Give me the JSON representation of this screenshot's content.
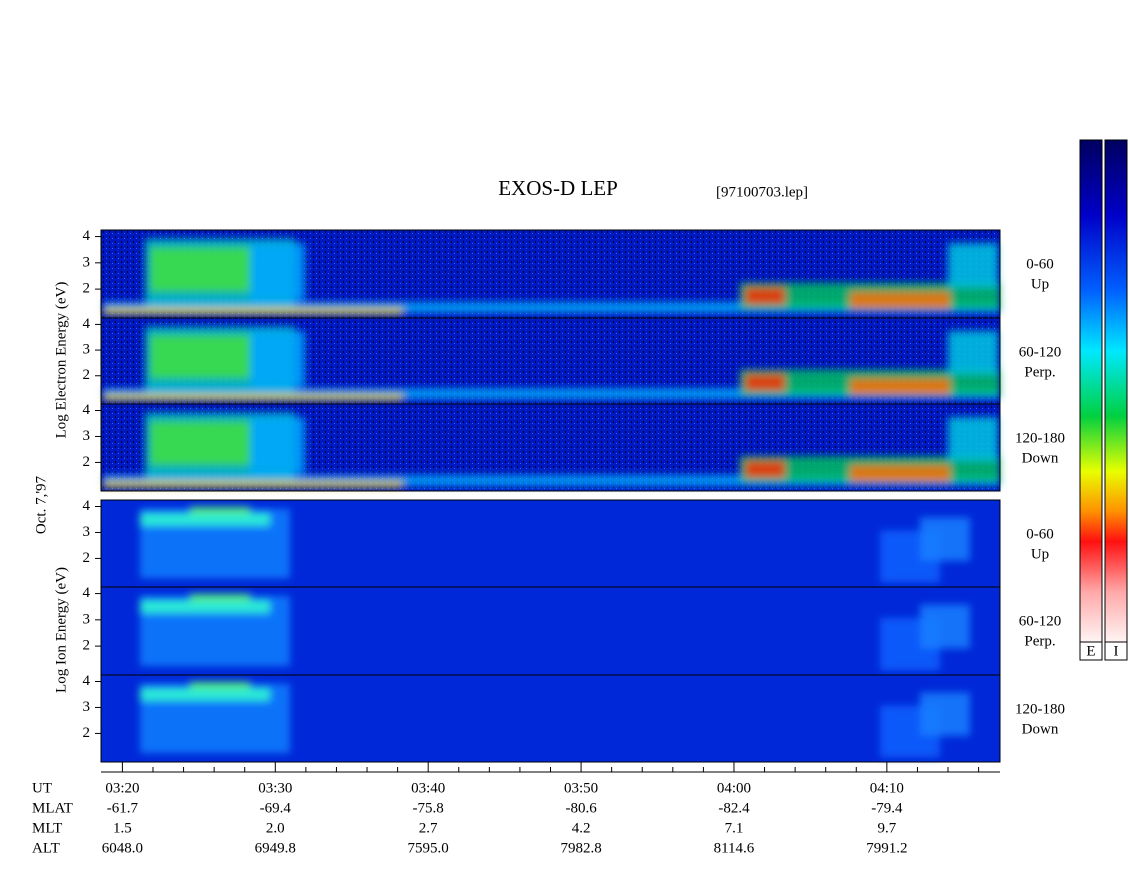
{
  "chart_data": {
    "type": "spectrogram",
    "title": "EXOS-D LEP",
    "file": "[97100703.lep]",
    "date_label": "Oct. 7,'97",
    "electron_axis_label": "Log Electron Energy (eV)",
    "ion_axis_label": "Log Ion Energy (eV)",
    "ylim": [
      0.9,
      4.25
    ],
    "yticks": [
      2,
      3,
      4
    ],
    "panels": [
      {
        "species": "electron",
        "label": [
          "0-60",
          "Up"
        ]
      },
      {
        "species": "electron",
        "label": [
          "60-120",
          "Perp."
        ]
      },
      {
        "species": "electron",
        "label": [
          "120-180",
          "Down"
        ]
      },
      {
        "species": "ion",
        "label": [
          "0-60",
          "Up"
        ]
      },
      {
        "species": "ion",
        "label": [
          "60-120",
          "Perp."
        ]
      },
      {
        "species": "ion",
        "label": [
          "120-180",
          "Down"
        ]
      }
    ],
    "xlim": [
      198.6,
      257.4
    ],
    "xticks": [
      {
        "value": 200,
        "label": "03:20"
      },
      {
        "value": 210,
        "label": "03:30"
      },
      {
        "value": 220,
        "label": "03:40"
      },
      {
        "value": 230,
        "label": "03:50"
      },
      {
        "value": 240,
        "label": "04:00"
      },
      {
        "value": 250,
        "label": "04:10"
      }
    ],
    "x_row_label": "UT",
    "ephemeris": [
      {
        "label": "MLAT",
        "values": [
          "-61.7",
          "-69.4",
          "-75.8",
          "-80.6",
          "-82.4",
          "-79.4"
        ]
      },
      {
        "label": "MLT",
        "values": [
          "1.5",
          "2.0",
          "2.7",
          "4.2",
          "7.1",
          "9.7"
        ]
      },
      {
        "label": "ALT",
        "values": [
          "6048.0",
          "6949.8",
          "7595.0",
          "7982.8",
          "8114.6",
          "7991.2"
        ]
      }
    ],
    "colorbars": [
      "E",
      "I"
    ]
  }
}
